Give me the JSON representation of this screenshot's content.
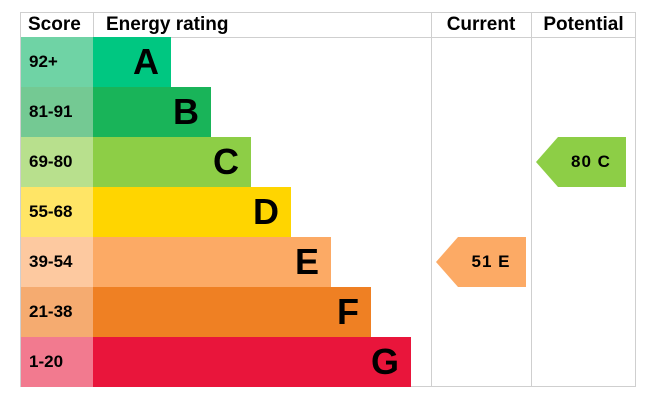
{
  "chart_data": {
    "type": "table",
    "headers": {
      "score": "Score",
      "rating": "Energy rating",
      "current": "Current",
      "potential": "Potential"
    },
    "bands": [
      {
        "range": "92+",
        "letter": "A",
        "color": "#00c781",
        "score_bg": "#6fd3a5"
      },
      {
        "range": "81-91",
        "letter": "B",
        "color": "#19b459",
        "score_bg": "#74c993"
      },
      {
        "range": "69-80",
        "letter": "C",
        "color": "#8dce46",
        "score_bg": "#b8e08d"
      },
      {
        "range": "55-68",
        "letter": "D",
        "color": "#ffd500",
        "score_bg": "#ffe566"
      },
      {
        "range": "39-54",
        "letter": "E",
        "color": "#fcaa65",
        "score_bg": "#fdc9a0"
      },
      {
        "range": "21-38",
        "letter": "F",
        "color": "#ef8023",
        "score_bg": "#f5ab70"
      },
      {
        "range": "1-20",
        "letter": "G",
        "color": "#e9153b",
        "score_bg": "#f27a8f"
      }
    ],
    "current": {
      "score": 51,
      "band": "E",
      "label": "51  E",
      "color": "#fcaa65"
    },
    "potential": {
      "score": 80,
      "band": "C",
      "label": "80  C",
      "color": "#8dce46"
    }
  }
}
